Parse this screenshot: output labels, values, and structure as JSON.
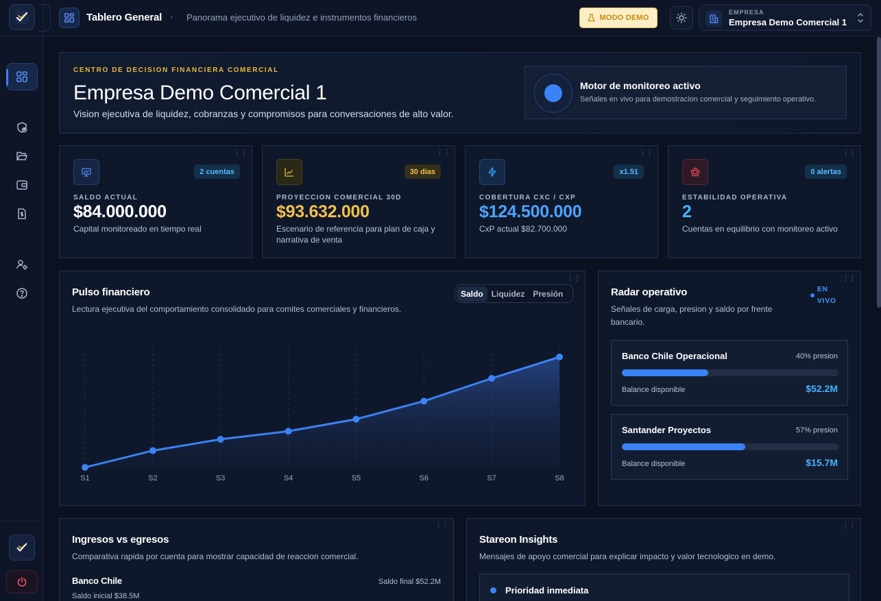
{
  "header": {
    "title": "Tablero General",
    "subtitle": "Panorama ejecutivo de liquidez e instrumentos financieros",
    "demo_label": "MODO DEMO",
    "company_label": "EMPRESA",
    "company_name": "Empresa Demo Comercial 1"
  },
  "sidebar": {
    "items": [
      {
        "icon": "dashboard-icon",
        "active": true
      },
      {
        "icon": "shield-user-icon"
      },
      {
        "icon": "folder-open-icon"
      },
      {
        "icon": "wallet-icon"
      },
      {
        "icon": "invoice-dollar-icon"
      },
      {
        "icon": "users-settings-icon"
      },
      {
        "icon": "help-circle-icon"
      }
    ]
  },
  "hero": {
    "kicker": "CENTRO DE DECISION FINANCIERA COMERCIAL",
    "title": "Empresa Demo Comercial 1",
    "description": "Vision ejecutiva de liquidez, cobranzas y compromisos para conversaciones de alto valor.",
    "monitor_title": "Motor de monitoreo activo",
    "monitor_desc": "Señales en vivo para demostracion comercial y seguimiento operativo."
  },
  "kpis": [
    {
      "label": "SALDO ACTUAL",
      "value": "$84.000.000",
      "desc": "Capital monitoreado en tiempo real",
      "badge": "2 cuentas",
      "color": "#ffffff",
      "badge_color": "#5cb8ff",
      "icon": "monitor-chart-icon"
    },
    {
      "label": "PROYECCION COMERCIAL 30D",
      "value": "$93.632.000",
      "desc": "Escenario de referencia para plan de caja y narrativa de venta",
      "badge": "30 dias",
      "color": "#f2c14a",
      "badge_color": "#f2c14a",
      "icon": "trend-chart-icon"
    },
    {
      "label": "COBERTURA CXC / CXP",
      "value": "$124.500.000",
      "desc": "CxP actual $82.700.000",
      "badge": "x1.51",
      "color": "#4da3ff",
      "badge_color": "#5cb8ff",
      "icon": "lightning-icon"
    },
    {
      "label": "ESTABILIDAD OPERATIVA",
      "value": "2",
      "desc": "Cuentas en equilibrio con monitoreo activo",
      "badge": "0 alertas",
      "color": "#46b3ff",
      "badge_color": "#5cb8ff",
      "icon": "pentagon-alert-icon"
    }
  ],
  "pulse": {
    "title": "Pulso financiero",
    "subtitle": "Lectura ejecutiva del comportamiento consolidado para comites comerciales y financieros.",
    "tabs": [
      "Saldo",
      "Liquidez",
      "Presión"
    ],
    "active_tab": "Saldo"
  },
  "chart_data": {
    "type": "area",
    "categories": [
      "S1",
      "S2",
      "S3",
      "S4",
      "S5",
      "S6",
      "S7",
      "S8"
    ],
    "values": [
      0,
      25,
      42,
      54,
      72,
      99,
      133,
      165
    ],
    "ylim": [
      0,
      170
    ],
    "grid": "vertical-dashed",
    "color": "#3b82f6"
  },
  "radar": {
    "title": "Radar operativo",
    "subtitle": "Señales de carga, presion y saldo por frente bancario.",
    "live_line1": "EN",
    "live_line2": "VIVO",
    "items": [
      {
        "name": "Banco Chile Operacional",
        "pressure_label": "40% presion",
        "pressure": 0.4,
        "balance_label": "Balance disponible",
        "amount": "$52.2M"
      },
      {
        "name": "Santander Proyectos",
        "pressure_label": "57% presion",
        "pressure": 0.57,
        "balance_label": "Balance disponible",
        "amount": "$15.7M"
      }
    ]
  },
  "ingresos": {
    "title": "Ingresos vs egresos",
    "subtitle": "Comparativa rapida por cuenta para mostrar capacidad de reaccion comercial.",
    "bank": "Banco Chile",
    "final": "Saldo final $52.2M",
    "initial": "Saldo inicial $38.5M"
  },
  "insights": {
    "title": "Stareon Insights",
    "subtitle": "Mensajes de apoyo comercial para explicar impacto y valor tecnologico en demo.",
    "priority": "Prioridad inmediata"
  }
}
